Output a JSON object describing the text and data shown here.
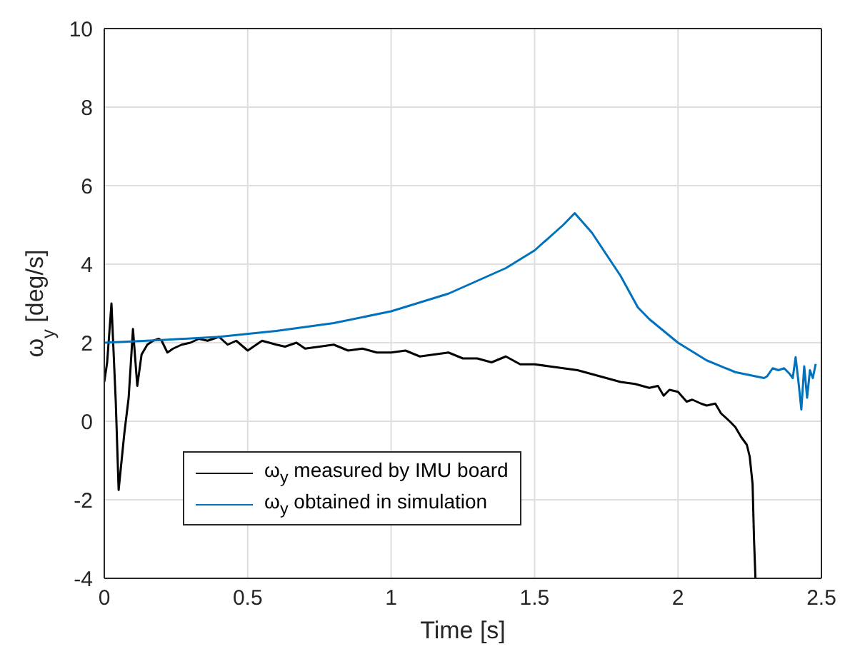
{
  "chart_data": {
    "type": "line",
    "xlabel": "Time [s]",
    "ylabel": "ω$_{y}$ [deg/s]",
    "xlim": [
      0,
      2.5
    ],
    "xticks": [
      0,
      0.5,
      1,
      1.5,
      2,
      2.5
    ],
    "ylim": [
      -4,
      10
    ],
    "yticks": [
      -4,
      -2,
      0,
      2,
      4,
      6,
      8,
      10
    ],
    "grid": true,
    "legend": "bottom left",
    "line_style": "solid",
    "marker": "none",
    "series": [
      {
        "name": "ω$_{y}$ measured by IMU board",
        "color": "#000000",
        "x": [
          0,
          0.01,
          0.025,
          0.04,
          0.05,
          0.07,
          0.085,
          0.1,
          0.115,
          0.13,
          0.15,
          0.17,
          0.19,
          0.2,
          0.22,
          0.24,
          0.27,
          0.3,
          0.33,
          0.36,
          0.4,
          0.43,
          0.46,
          0.5,
          0.55,
          0.6,
          0.63,
          0.67,
          0.7,
          0.75,
          0.8,
          0.85,
          0.9,
          0.95,
          1.0,
          1.05,
          1.1,
          1.15,
          1.2,
          1.25,
          1.3,
          1.35,
          1.4,
          1.45,
          1.5,
          1.55,
          1.6,
          1.65,
          1.7,
          1.75,
          1.8,
          1.85,
          1.9,
          1.93,
          1.95,
          1.97,
          2.0,
          2.03,
          2.05,
          2.08,
          2.1,
          2.13,
          2.15,
          2.18,
          2.2,
          2.22,
          2.24,
          2.25,
          2.26,
          2.265,
          2.27
        ],
        "values": [
          1.0,
          1.5,
          3.0,
          0.5,
          -1.75,
          -0.3,
          0.6,
          2.35,
          0.9,
          1.7,
          1.95,
          2.05,
          2.1,
          2.05,
          1.75,
          1.85,
          1.95,
          2.0,
          2.1,
          2.05,
          2.15,
          1.95,
          2.05,
          1.8,
          2.05,
          1.95,
          1.9,
          2.0,
          1.85,
          1.9,
          1.95,
          1.8,
          1.85,
          1.75,
          1.75,
          1.8,
          1.65,
          1.7,
          1.75,
          1.6,
          1.6,
          1.5,
          1.65,
          1.45,
          1.45,
          1.4,
          1.35,
          1.3,
          1.2,
          1.1,
          1.0,
          0.95,
          0.85,
          0.9,
          0.65,
          0.8,
          0.75,
          0.5,
          0.55,
          0.45,
          0.4,
          0.45,
          0.2,
          0.0,
          -0.15,
          -0.4,
          -0.6,
          -0.9,
          -1.6,
          -3.0,
          -4.0
        ]
      },
      {
        "name": "ω$_{y}$ obtained in simulation",
        "color": "#0072bd",
        "x": [
          0,
          0.2,
          0.4,
          0.6,
          0.8,
          1.0,
          1.2,
          1.4,
          1.5,
          1.6,
          1.64,
          1.7,
          1.8,
          1.86,
          1.9,
          2.0,
          2.1,
          2.2,
          2.3,
          2.31,
          2.33,
          2.35,
          2.37,
          2.39,
          2.4,
          2.41,
          2.42,
          2.43,
          2.44,
          2.45,
          2.46,
          2.47,
          2.48
        ],
        "values": [
          2.0,
          2.07,
          2.15,
          2.3,
          2.5,
          2.8,
          3.25,
          3.9,
          4.35,
          5.0,
          5.3,
          4.8,
          3.7,
          2.9,
          2.6,
          2.0,
          1.55,
          1.25,
          1.1,
          1.14,
          1.35,
          1.3,
          1.35,
          1.2,
          1.1,
          1.63,
          1.0,
          0.3,
          1.4,
          0.6,
          1.3,
          1.1,
          1.46
        ]
      }
    ]
  }
}
